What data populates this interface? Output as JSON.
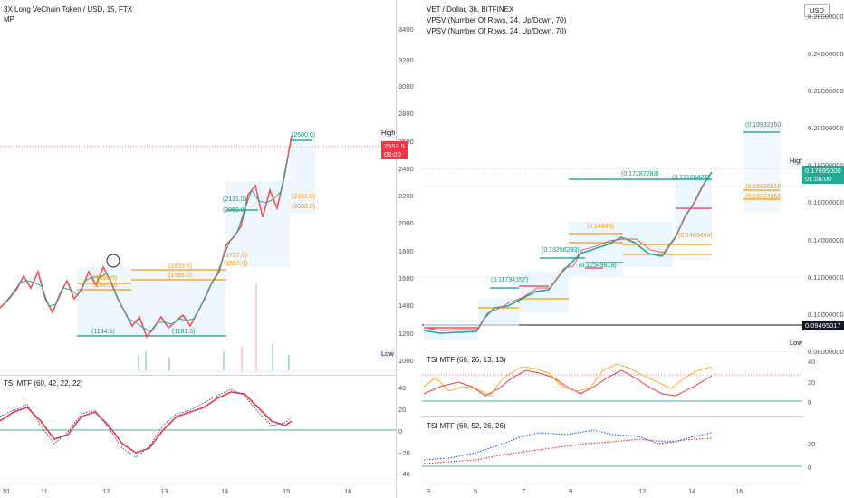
{
  "left_chart": {
    "title": "3X Long VeChain Token / USD, 15, FTX",
    "indicator": "MP",
    "price_axis": [
      "3400",
      "3200",
      "3000",
      "2800",
      "2600",
      "2400",
      "2200",
      "2000",
      "1800",
      "1600",
      "1400",
      "1200",
      "1000"
    ],
    "high_label": "High − 2660.5",
    "low_label": "Low − 1063.5",
    "last_price": "2553.5",
    "countdown": "08:00",
    "tsi_title": "TSI MTF (60, 42, 22, 22)",
    "tsi_axis": [
      "40",
      "20",
      "0",
      "−20",
      "−40"
    ],
    "date_axis": [
      "10",
      "11",
      "12",
      "13",
      "14",
      "15",
      "16"
    ],
    "level_labels": [
      "(2600.0)",
      "(2131.0)",
      "(2050.0)",
      "(2161.0)",
      "(2088.0)",
      "(1727.0)",
      "(1697.0)",
      "(1653.5)",
      "(1586.0)",
      "(1569.5)",
      "(1545.5)",
      "(1184.5)",
      "(1181.5)"
    ]
  },
  "right_chart": {
    "title": "VET / Dollar, 3h, BITFINEX",
    "indicator1": "VPSV (Number Of Rows, 24, Up/Down, 70)",
    "indicator2": "VPSV (Number Of Rows, 24, Up/Down, 70)",
    "currency_button": "USD",
    "price_axis": [
      "0.26000000",
      "0.24000000",
      "0.22000000",
      "0.20000000",
      "0.18000000",
      "0.16000000",
      "0.14000000",
      "0.12000000",
      "0.10000000",
      "0.08000000"
    ],
    "high_label": "High − 0.17890000",
    "low_label": "Low − 0.08679200",
    "last_price": "0.17695000",
    "countdown": "01:08:00",
    "black_line_price": "0.09495017",
    "level_labels": [
      "(0.19932350)",
      "(0.17287283)",
      "(0.17160427)",
      "(0.16626016)",
      "(0.16074965)",
      "(0.13256293)",
      "(0.12549819)",
      "(0.11734157)",
      "(0.14840)",
      "(0.1408404)"
    ],
    "tsi1_title": "TSI MTF (60, 26, 13, 13)",
    "tsi1_axis": [
      "40",
      "20",
      "0"
    ],
    "tsi2_title": "TSI MTF (60, 52, 26, 26)",
    "tsi2_axis": [
      "20",
      "0"
    ],
    "date_axis": [
      "3",
      "5",
      "7",
      "9",
      "12",
      "14",
      "16"
    ]
  },
  "colors": {
    "teal": "#089981",
    "red": "#f23645",
    "orange": "#ff9800",
    "blue": "#2962ff",
    "green": "#22ab94"
  }
}
